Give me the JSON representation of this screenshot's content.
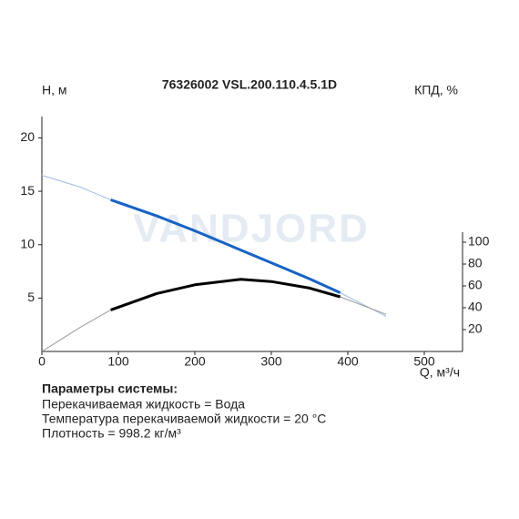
{
  "chart_data": {
    "type": "line",
    "title": "76326002 VSL.200.110.4.5.1D",
    "watermark": "VANDJORD",
    "y_label": "H, м",
    "y2_label": "КПД, %",
    "x_label": "Q, м³/ч",
    "x": [
      0,
      50,
      90,
      150,
      200,
      260,
      300,
      350,
      390,
      450
    ],
    "series": [
      {
        "color": "#9dbbe0",
        "width": 1,
        "values": [
          16.5,
          15.4,
          14.2,
          12.7,
          11.3,
          9.5,
          8.3,
          6.8,
          5.5,
          3.3
        ]
      },
      {
        "color": "#1763c4",
        "width": 3,
        "values": [
          null,
          null,
          14.2,
          12.7,
          11.3,
          9.5,
          8.3,
          6.8,
          5.5,
          null
        ]
      },
      {
        "color": "#9a9a9a",
        "width": 1,
        "axis": "y2",
        "values": [
          0,
          22,
          38,
          53,
          61,
          66,
          64,
          58,
          50,
          34
        ]
      },
      {
        "color": "#000000",
        "width": 3,
        "axis": "y2",
        "values": [
          null,
          null,
          38,
          53,
          61,
          66,
          64,
          58,
          50,
          null
        ]
      }
    ],
    "xlim": [
      0,
      550
    ],
    "xticks": [
      0,
      100,
      200,
      300,
      400,
      500
    ],
    "ylim": [
      0,
      22
    ],
    "yticks": [
      5,
      10,
      15,
      20
    ],
    "y2lim": [
      0,
      215
    ],
    "y2ticks": [
      20,
      40,
      60,
      80,
      100
    ],
    "params": {
      "heading": "Параметры системы:",
      "lines": [
        "Перекачиваемая жидкость = Вода",
        "Температура перекачиваемой жидкости = 20 °C",
        "Плотность = 998.2 кг/м³"
      ]
    }
  }
}
